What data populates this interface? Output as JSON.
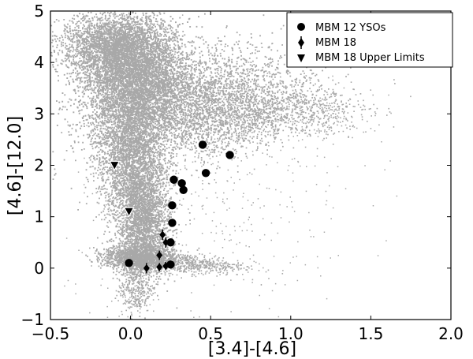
{
  "chart_data": {
    "type": "scatter",
    "xlabel": "[3.4]-[4.6]",
    "ylabel": "[4.6]-[12.0]",
    "xlim": [
      -0.5,
      2.0
    ],
    "ylim": [
      -1,
      5
    ],
    "x_ticks": [
      -0.5,
      0.0,
      0.5,
      1.0,
      1.5,
      2.0
    ],
    "x_tick_labels": [
      "−0.5",
      "0.0",
      "0.5",
      "1.0",
      "1.5",
      "2.0"
    ],
    "y_ticks": [
      -1,
      0,
      1,
      2,
      3,
      4,
      5
    ],
    "y_tick_labels": [
      "−1",
      "0",
      "1",
      "2",
      "3",
      "4",
      "5"
    ],
    "grid": false,
    "legend_position": "top-right",
    "background_cloud_color": "#a8a8a8",
    "series": [
      {
        "name": "MBM 12 YSOs",
        "marker": "circle",
        "color": "#000000",
        "points": [
          [
            0.62,
            2.2
          ],
          [
            0.45,
            2.4
          ],
          [
            0.47,
            1.85
          ],
          [
            0.27,
            1.72
          ],
          [
            0.32,
            1.65
          ],
          [
            0.33,
            1.52
          ],
          [
            0.26,
            1.22
          ],
          [
            0.26,
            0.88
          ],
          [
            0.25,
            0.5
          ],
          [
            -0.01,
            0.1
          ],
          [
            0.25,
            0.07
          ]
        ]
      },
      {
        "name": "MBM 18",
        "marker": "diamond",
        "color": "#000000",
        "points": [
          [
            0.1,
            0.0,
            0.1
          ],
          [
            0.18,
            0.02,
            0.08
          ],
          [
            0.22,
            0.04,
            0.08
          ],
          [
            0.2,
            0.65,
            0.1
          ],
          [
            0.22,
            0.5,
            0.1
          ],
          [
            0.18,
            0.25,
            0.09
          ]
        ]
      },
      {
        "name": "MBM 18 Upper Limits",
        "marker": "triangle-down",
        "color": "#000000",
        "points": [
          [
            -0.1,
            2.0
          ],
          [
            -0.01,
            1.1
          ]
        ]
      }
    ]
  }
}
